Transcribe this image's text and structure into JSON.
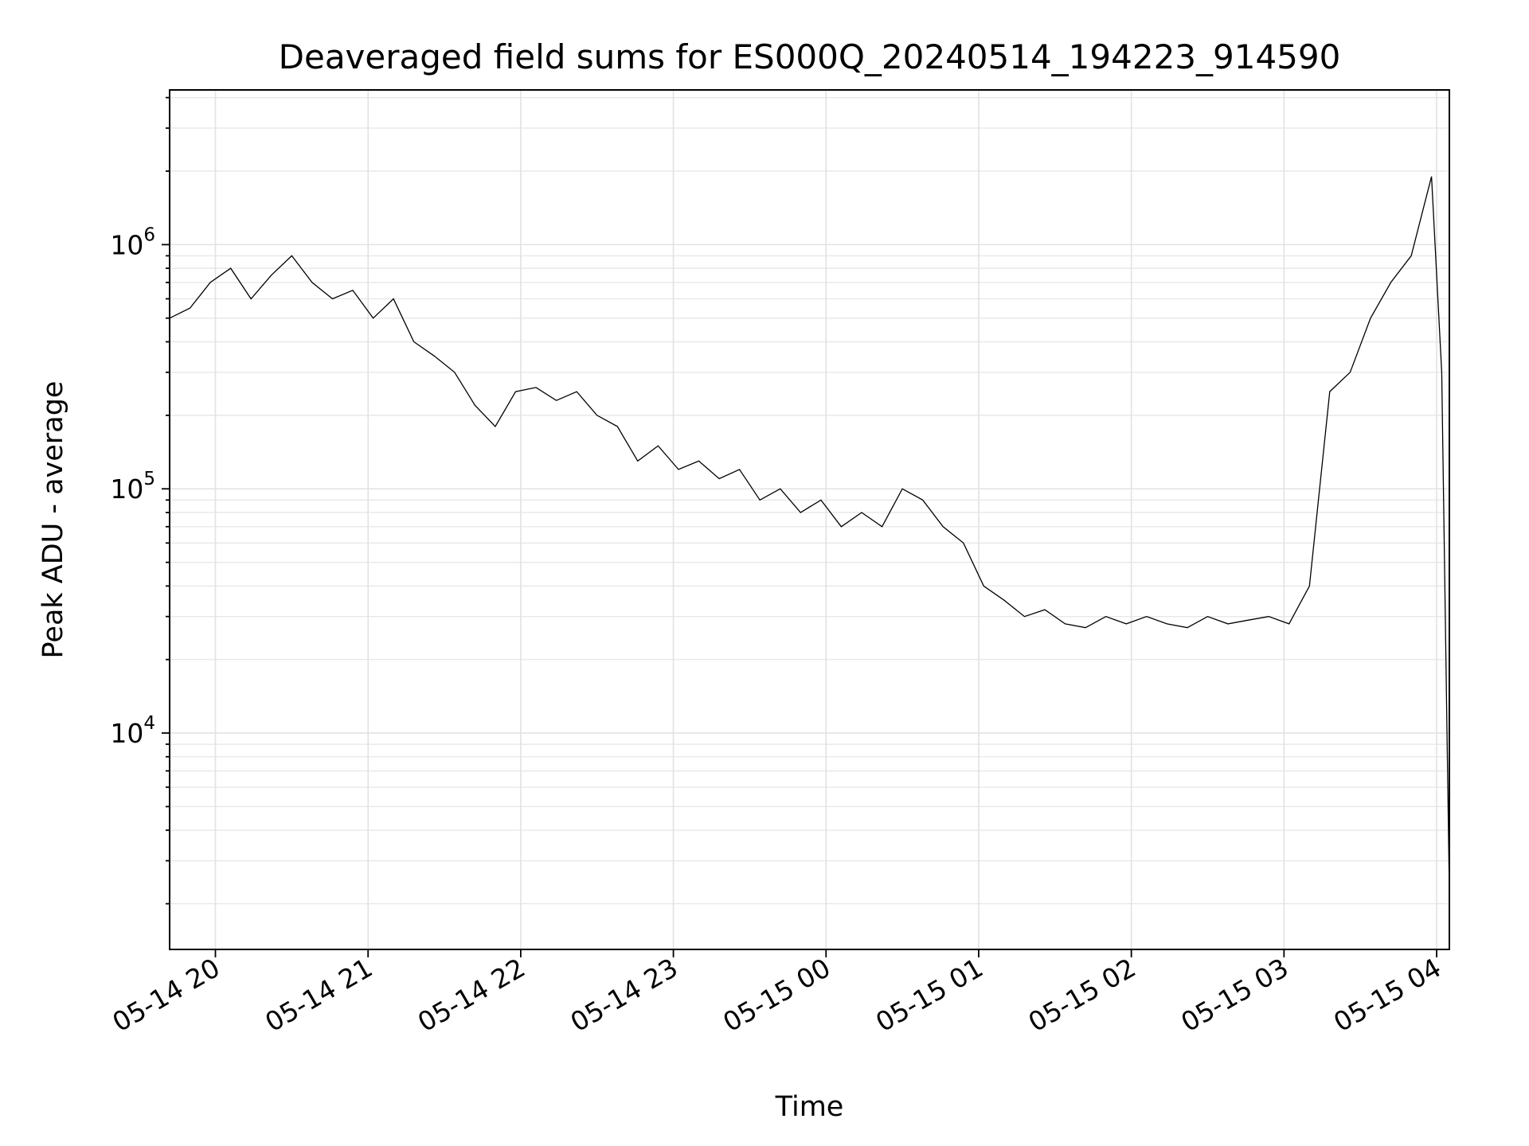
{
  "chart_data": {
    "type": "line",
    "title": "Deaveraged field sums for ES000Q_20240514_194223_914590",
    "xlabel": "Time",
    "ylabel": "Peak ADU - average",
    "yscale": "log",
    "ylim": [
      1300,
      4300000
    ],
    "xlim": [
      "2024-05-14 19:42",
      "2024-05-15 04:05"
    ],
    "grid": true,
    "x_ticks": [
      {
        "value": "2024-05-14 20:00",
        "label": "05-14 20"
      },
      {
        "value": "2024-05-14 21:00",
        "label": "05-14 21"
      },
      {
        "value": "2024-05-14 22:00",
        "label": "05-14 22"
      },
      {
        "value": "2024-05-14 23:00",
        "label": "05-14 23"
      },
      {
        "value": "2024-05-15 00:00",
        "label": "05-15 00"
      },
      {
        "value": "2024-05-15 01:00",
        "label": "05-15 01"
      },
      {
        "value": "2024-05-15 02:00",
        "label": "05-15 02"
      },
      {
        "value": "2024-05-15 03:00",
        "label": "05-15 03"
      },
      {
        "value": "2024-05-15 04:00",
        "label": "05-15 04"
      }
    ],
    "y_ticks": [
      {
        "value": 10000,
        "base": "10",
        "exp": "4"
      },
      {
        "value": 100000,
        "base": "10",
        "exp": "5"
      },
      {
        "value": 1000000,
        "base": "10",
        "exp": "6"
      }
    ],
    "series": [
      {
        "color": "#000000",
        "x": [
          "2024-05-14 19:42",
          "2024-05-14 19:50",
          "2024-05-14 19:58",
          "2024-05-14 20:06",
          "2024-05-14 20:14",
          "2024-05-14 20:22",
          "2024-05-14 20:30",
          "2024-05-14 20:38",
          "2024-05-14 20:46",
          "2024-05-14 20:54",
          "2024-05-14 21:02",
          "2024-05-14 21:10",
          "2024-05-14 21:18",
          "2024-05-14 21:26",
          "2024-05-14 21:34",
          "2024-05-14 21:42",
          "2024-05-14 21:50",
          "2024-05-14 21:58",
          "2024-05-14 22:06",
          "2024-05-14 22:14",
          "2024-05-14 22:22",
          "2024-05-14 22:30",
          "2024-05-14 22:38",
          "2024-05-14 22:46",
          "2024-05-14 22:54",
          "2024-05-14 23:02",
          "2024-05-14 23:10",
          "2024-05-14 23:18",
          "2024-05-14 23:26",
          "2024-05-14 23:34",
          "2024-05-14 23:42",
          "2024-05-14 23:50",
          "2024-05-14 23:58",
          "2024-05-15 00:06",
          "2024-05-15 00:14",
          "2024-05-15 00:22",
          "2024-05-15 00:30",
          "2024-05-15 00:38",
          "2024-05-15 00:46",
          "2024-05-15 00:54",
          "2024-05-15 01:02",
          "2024-05-15 01:10",
          "2024-05-15 01:18",
          "2024-05-15 01:26",
          "2024-05-15 01:34",
          "2024-05-15 01:42",
          "2024-05-15 01:50",
          "2024-05-15 01:58",
          "2024-05-15 02:06",
          "2024-05-15 02:14",
          "2024-05-15 02:22",
          "2024-05-15 02:30",
          "2024-05-15 02:38",
          "2024-05-15 02:46",
          "2024-05-15 02:54",
          "2024-05-15 03:02",
          "2024-05-15 03:10",
          "2024-05-15 03:18",
          "2024-05-15 03:26",
          "2024-05-15 03:34",
          "2024-05-15 03:42",
          "2024-05-15 03:50",
          "2024-05-15 03:58",
          "2024-05-15 04:02",
          "2024-05-15 04:05"
        ],
        "y": [
          500000,
          550000,
          700000,
          800000,
          600000,
          750000,
          900000,
          700000,
          600000,
          650000,
          500000,
          600000,
          400000,
          350000,
          300000,
          220000,
          180000,
          250000,
          260000,
          230000,
          250000,
          200000,
          180000,
          130000,
          150000,
          120000,
          130000,
          110000,
          120000,
          90000,
          100000,
          80000,
          90000,
          70000,
          80000,
          70000,
          100000,
          90000,
          70000,
          60000,
          40000,
          35000,
          30000,
          32000,
          28000,
          27000,
          30000,
          28000,
          30000,
          28000,
          27000,
          30000,
          28000,
          29000,
          30000,
          28000,
          40000,
          250000,
          300000,
          500000,
          700000,
          900000,
          1900000,
          300000,
          2200
        ]
      }
    ]
  }
}
